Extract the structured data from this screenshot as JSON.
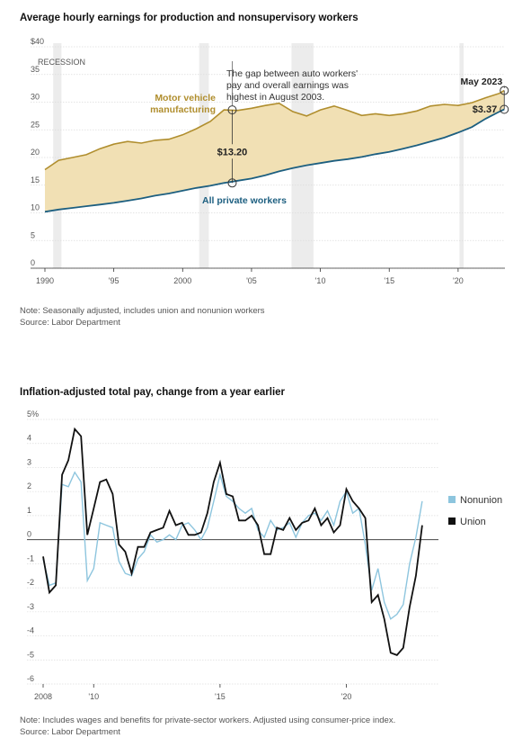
{
  "chart1": {
    "title": "Average hourly earnings for production and nonsupervisory workers",
    "note": "Note: Seasonally adjusted, includes union and nonunion workers",
    "source": "Source: Labor Department",
    "recession_label": "RECESSION",
    "gold_label": [
      "Motor vehicle",
      "manufacturing"
    ],
    "blue_label": "All private workers",
    "gap_annotation": [
      "The gap between auto workers'",
      "pay and overall earnings was",
      "highest in August 2003."
    ],
    "gap_value": "$13.20",
    "end_label": "May 2023",
    "end_gap": "$3.37",
    "colors": {
      "gold": "#b08e2e",
      "fill": "#f1e0b4",
      "blue": "#1d5f80",
      "recession": "#ececec"
    }
  },
  "chart2": {
    "title": "Inflation-adjusted total pay, change from a year earlier",
    "note": "Note: Includes wages and benefits for private-sector workers. Adjusted using consumer-price index.",
    "source": "Source: Labor Department",
    "legend": [
      {
        "name": "Nonunion",
        "color": "#8dc5de"
      },
      {
        "name": "Union",
        "color": "#111111"
      }
    ]
  },
  "chart_data": [
    {
      "type": "area",
      "title": "Average hourly earnings for production and nonsupervisory workers",
      "x_range": [
        1990,
        2023.4
      ],
      "ylim": [
        0,
        40
      ],
      "y_ticks": [
        0,
        5,
        10,
        15,
        20,
        25,
        30,
        35,
        40
      ],
      "y_tick_labels": [
        "0",
        "5",
        "10",
        "15",
        "20",
        "25",
        "30",
        "35",
        "$40"
      ],
      "x_ticks": [
        1990,
        1995,
        2000,
        2005,
        2010,
        2015,
        2020
      ],
      "x_tick_labels": [
        "1990",
        "'95",
        "2000",
        "'05",
        "'10",
        "'15",
        "'20"
      ],
      "recessions": [
        [
          1990.6,
          1991.2
        ],
        [
          2001.2,
          2001.9
        ],
        [
          2007.9,
          2009.5
        ],
        [
          2020.1,
          2020.4
        ]
      ],
      "gap_highlight": {
        "year": 2003.6,
        "value": 13.2
      },
      "end_highlight": {
        "year": 2023.35,
        "gold": 32.1,
        "blue": 28.7,
        "gap": 3.37
      },
      "series": [
        {
          "name": "Motor vehicle manufacturing",
          "points": [
            [
              1990,
              17.8
            ],
            [
              1991,
              19.5
            ],
            [
              1992,
              20.0
            ],
            [
              1993,
              20.5
            ],
            [
              1994,
              21.6
            ],
            [
              1995,
              22.4
            ],
            [
              1996,
              22.9
            ],
            [
              1997,
              22.6
            ],
            [
              1998,
              23.1
            ],
            [
              1999,
              23.3
            ],
            [
              2000,
              24.1
            ],
            [
              2001,
              25.2
            ],
            [
              2002,
              26.5
            ],
            [
              2003,
              28.6
            ],
            [
              2004,
              28.5
            ],
            [
              2005,
              28.9
            ],
            [
              2006,
              29.4
            ],
            [
              2007,
              29.8
            ],
            [
              2008,
              28.3
            ],
            [
              2009,
              27.5
            ],
            [
              2010,
              28.6
            ],
            [
              2011,
              29.3
            ],
            [
              2012,
              28.5
            ],
            [
              2013,
              27.6
            ],
            [
              2014,
              27.9
            ],
            [
              2015,
              27.6
            ],
            [
              2016,
              27.9
            ],
            [
              2017,
              28.4
            ],
            [
              2018,
              29.3
            ],
            [
              2019,
              29.6
            ],
            [
              2020,
              29.4
            ],
            [
              2021,
              29.9
            ],
            [
              2022,
              30.8
            ],
            [
              2023,
              31.6
            ],
            [
              2023.35,
              32.1
            ]
          ]
        },
        {
          "name": "All private workers",
          "points": [
            [
              1990,
              10.2
            ],
            [
              1991,
              10.6
            ],
            [
              1992,
              10.9
            ],
            [
              1993,
              11.2
            ],
            [
              1994,
              11.5
            ],
            [
              1995,
              11.8
            ],
            [
              1996,
              12.2
            ],
            [
              1997,
              12.6
            ],
            [
              1998,
              13.1
            ],
            [
              1999,
              13.5
            ],
            [
              2000,
              14.0
            ],
            [
              2001,
              14.5
            ],
            [
              2002,
              14.9
            ],
            [
              2003,
              15.4
            ],
            [
              2004,
              15.8
            ],
            [
              2005,
              16.2
            ],
            [
              2006,
              16.8
            ],
            [
              2007,
              17.5
            ],
            [
              2008,
              18.1
            ],
            [
              2009,
              18.6
            ],
            [
              2010,
              19.0
            ],
            [
              2011,
              19.4
            ],
            [
              2012,
              19.7
            ],
            [
              2013,
              20.1
            ],
            [
              2014,
              20.6
            ],
            [
              2015,
              21.0
            ],
            [
              2016,
              21.6
            ],
            [
              2017,
              22.2
            ],
            [
              2018,
              22.9
            ],
            [
              2019,
              23.6
            ],
            [
              2020,
              24.5
            ],
            [
              2021,
              25.5
            ],
            [
              2022,
              27.0
            ],
            [
              2023,
              28.3
            ],
            [
              2023.35,
              28.7
            ]
          ]
        }
      ]
    },
    {
      "type": "line",
      "title": "Inflation-adjusted total pay, change from a year earlier",
      "x_range": [
        2008,
        2023.5
      ],
      "ylim": [
        -6,
        5
      ],
      "y_ticks": [
        -6,
        -5,
        -4,
        -3,
        -2,
        -1,
        0,
        1,
        2,
        3,
        4,
        5
      ],
      "y_tick_labels": [
        "-6",
        "-5",
        "-4",
        "-3",
        "-2",
        "-1",
        "0",
        "1",
        "2",
        "3",
        "4",
        "5%"
      ],
      "x_ticks": [
        2008,
        2010,
        2015,
        2020
      ],
      "x_tick_labels": [
        "2008",
        "'10",
        "'15",
        "'20"
      ],
      "legend_position": "right",
      "series": [
        {
          "name": "Nonunion",
          "points": [
            [
              2008.0,
              -0.8
            ],
            [
              2008.25,
              -1.9
            ],
            [
              2008.5,
              -1.8
            ],
            [
              2008.75,
              2.3
            ],
            [
              2009.0,
              2.2
            ],
            [
              2009.25,
              2.8
            ],
            [
              2009.5,
              2.4
            ],
            [
              2009.75,
              -1.7
            ],
            [
              2010.0,
              -1.2
            ],
            [
              2010.25,
              0.7
            ],
            [
              2010.5,
              0.6
            ],
            [
              2010.75,
              0.5
            ],
            [
              2011.0,
              -0.9
            ],
            [
              2011.25,
              -1.4
            ],
            [
              2011.5,
              -1.5
            ],
            [
              2011.75,
              -0.8
            ],
            [
              2012.0,
              -0.5
            ],
            [
              2012.25,
              0.2
            ],
            [
              2012.5,
              -0.1
            ],
            [
              2012.75,
              0.0
            ],
            [
              2013.0,
              0.2
            ],
            [
              2013.25,
              0.0
            ],
            [
              2013.5,
              0.6
            ],
            [
              2013.75,
              0.7
            ],
            [
              2014.0,
              0.4
            ],
            [
              2014.25,
              0.0
            ],
            [
              2014.5,
              0.5
            ],
            [
              2014.75,
              1.6
            ],
            [
              2015.0,
              2.7
            ],
            [
              2015.25,
              1.8
            ],
            [
              2015.5,
              1.6
            ],
            [
              2015.75,
              1.3
            ],
            [
              2016.0,
              1.1
            ],
            [
              2016.25,
              1.3
            ],
            [
              2016.5,
              0.4
            ],
            [
              2016.75,
              0.1
            ],
            [
              2017.0,
              0.8
            ],
            [
              2017.25,
              0.4
            ],
            [
              2017.5,
              0.5
            ],
            [
              2017.75,
              0.7
            ],
            [
              2018.0,
              0.1
            ],
            [
              2018.25,
              0.7
            ],
            [
              2018.5,
              1.0
            ],
            [
              2018.75,
              1.1
            ],
            [
              2019.0,
              0.8
            ],
            [
              2019.25,
              1.2
            ],
            [
              2019.5,
              0.6
            ],
            [
              2019.75,
              1.6
            ],
            [
              2020.0,
              2.0
            ],
            [
              2020.25,
              1.1
            ],
            [
              2020.5,
              1.3
            ],
            [
              2020.75,
              -0.2
            ],
            [
              2021.0,
              -2.1
            ],
            [
              2021.25,
              -1.2
            ],
            [
              2021.5,
              -2.6
            ],
            [
              2021.75,
              -3.3
            ],
            [
              2022.0,
              -3.1
            ],
            [
              2022.25,
              -2.7
            ],
            [
              2022.5,
              -1.0
            ],
            [
              2022.75,
              0.1
            ],
            [
              2023.0,
              1.6
            ]
          ]
        },
        {
          "name": "Union",
          "points": [
            [
              2008.0,
              -0.7
            ],
            [
              2008.25,
              -2.2
            ],
            [
              2008.5,
              -1.9
            ],
            [
              2008.75,
              2.7
            ],
            [
              2009.0,
              3.3
            ],
            [
              2009.25,
              4.6
            ],
            [
              2009.5,
              4.3
            ],
            [
              2009.75,
              0.2
            ],
            [
              2010.0,
              1.3
            ],
            [
              2010.25,
              2.4
            ],
            [
              2010.5,
              2.5
            ],
            [
              2010.75,
              1.9
            ],
            [
              2011.0,
              -0.2
            ],
            [
              2011.25,
              -0.5
            ],
            [
              2011.5,
              -1.4
            ],
            [
              2011.75,
              -0.3
            ],
            [
              2012.0,
              -0.3
            ],
            [
              2012.25,
              0.3
            ],
            [
              2012.5,
              0.4
            ],
            [
              2012.75,
              0.5
            ],
            [
              2013.0,
              1.2
            ],
            [
              2013.25,
              0.6
            ],
            [
              2013.5,
              0.7
            ],
            [
              2013.75,
              0.2
            ],
            [
              2014.0,
              0.2
            ],
            [
              2014.25,
              0.3
            ],
            [
              2014.5,
              1.1
            ],
            [
              2014.75,
              2.4
            ],
            [
              2015.0,
              3.2
            ],
            [
              2015.25,
              1.9
            ],
            [
              2015.5,
              1.8
            ],
            [
              2015.75,
              0.8
            ],
            [
              2016.0,
              0.8
            ],
            [
              2016.25,
              1.0
            ],
            [
              2016.5,
              0.6
            ],
            [
              2016.75,
              -0.6
            ],
            [
              2017.0,
              -0.6
            ],
            [
              2017.25,
              0.5
            ],
            [
              2017.5,
              0.4
            ],
            [
              2017.75,
              0.9
            ],
            [
              2018.0,
              0.4
            ],
            [
              2018.25,
              0.7
            ],
            [
              2018.5,
              0.8
            ],
            [
              2018.75,
              1.3
            ],
            [
              2019.0,
              0.6
            ],
            [
              2019.25,
              0.9
            ],
            [
              2019.5,
              0.3
            ],
            [
              2019.75,
              0.6
            ],
            [
              2020.0,
              2.1
            ],
            [
              2020.25,
              1.6
            ],
            [
              2020.5,
              1.3
            ],
            [
              2020.75,
              0.9
            ],
            [
              2021.0,
              -2.6
            ],
            [
              2021.25,
              -2.3
            ],
            [
              2021.5,
              -3.3
            ],
            [
              2021.75,
              -4.7
            ],
            [
              2022.0,
              -4.8
            ],
            [
              2022.25,
              -4.5
            ],
            [
              2022.5,
              -2.8
            ],
            [
              2022.75,
              -1.5
            ],
            [
              2023.0,
              0.6
            ]
          ]
        }
      ]
    }
  ]
}
